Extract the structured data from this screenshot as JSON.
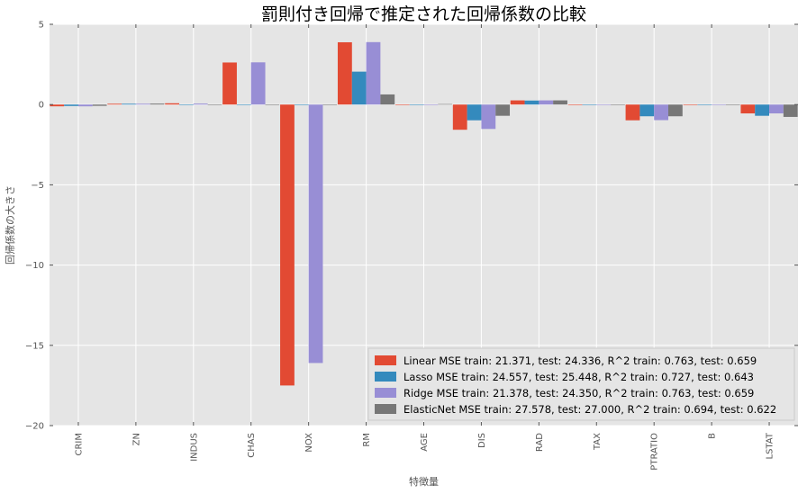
{
  "chart_data": {
    "type": "bar",
    "title": "罰則付き回帰で推定された回帰係数の比較",
    "xlabel": "特徴量",
    "ylabel": "回帰係数の大きさ",
    "ylim": [
      -20,
      5
    ],
    "yticks": [
      5,
      0,
      -5,
      -10,
      -15,
      -20
    ],
    "ytick_labels": [
      "5",
      "0",
      "−5",
      "−10",
      "−15",
      "−20"
    ],
    "grid": true,
    "legend_position": "lower-right",
    "categories": [
      "CRIM",
      "ZN",
      "INDUS",
      "CHAS",
      "NOX",
      "RM",
      "AGE",
      "DIS",
      "RAD",
      "TAX",
      "PTRATIO",
      "B",
      "LSTAT"
    ],
    "series": [
      {
        "name": "Linear MSE train: 21.371, test: 24.336, R^2 train: 0.763, test: 0.659",
        "color": "#e24a33",
        "values": [
          -0.11,
          0.05,
          0.08,
          2.62,
          -17.5,
          3.88,
          0.0,
          -1.57,
          0.26,
          -0.01,
          -0.98,
          0.01,
          -0.55
        ]
      },
      {
        "name": "Lasso MSE train: 24.557, test: 25.448, R^2 train: 0.727, test: 0.643",
        "color": "#348abd",
        "values": [
          -0.09,
          0.05,
          -0.02,
          0.0,
          -0.0,
          2.05,
          0.0,
          -0.98,
          0.25,
          -0.01,
          -0.73,
          0.01,
          -0.7
        ]
      },
      {
        "name": "Ridge MSE train: 21.378, test: 24.350, R^2 train: 0.763, test: 0.659",
        "color": "#988ed5",
        "values": [
          -0.11,
          0.05,
          0.06,
          2.63,
          -16.1,
          3.89,
          -0.0,
          -1.52,
          0.26,
          -0.01,
          -0.97,
          0.01,
          -0.55
        ]
      },
      {
        "name": "ElasticNet MSE train: 27.578, test: 27.000, R^2 train: 0.694, test: 0.622",
        "color": "#777777",
        "values": [
          -0.08,
          0.06,
          -0.01,
          0.0,
          -0.0,
          0.63,
          0.03,
          -0.7,
          0.26,
          -0.01,
          -0.73,
          0.01,
          -0.77
        ]
      }
    ]
  }
}
